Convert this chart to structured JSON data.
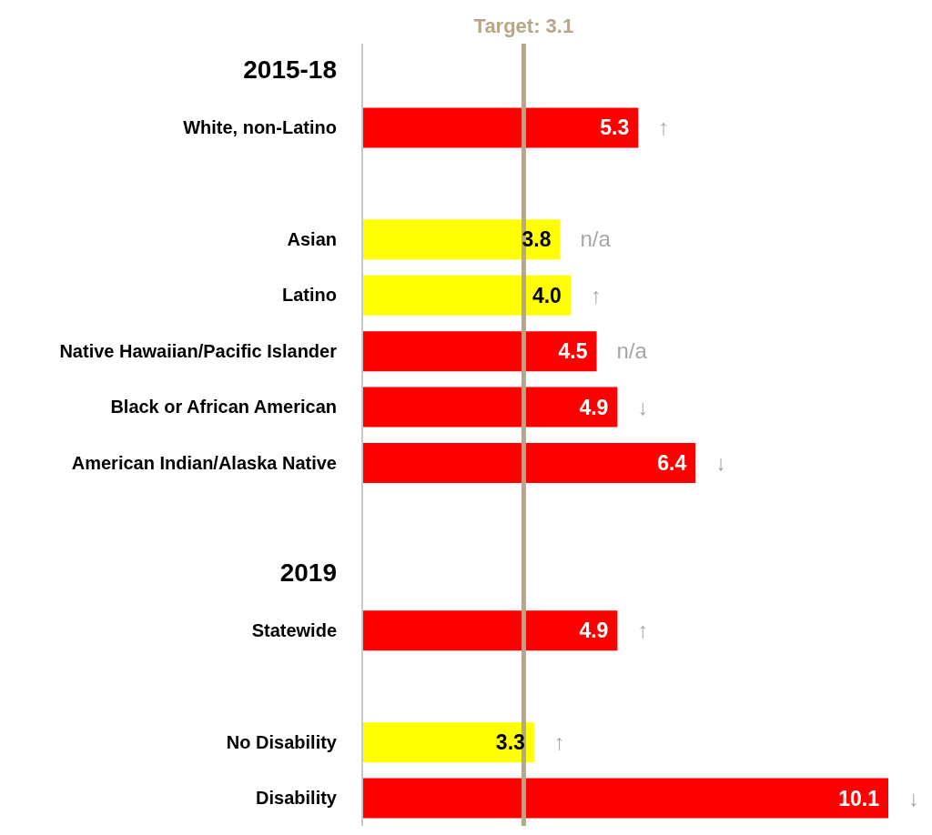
{
  "chart_data": {
    "type": "bar",
    "orientation": "horizontal",
    "categories": [
      "2015-18",
      "White, non-Latino",
      null,
      "Asian",
      "Latino",
      "Native Hawaiian/Pacific Islander",
      "Black or African American",
      "American Indian/Alaska Native",
      null,
      "2019",
      "Statewide",
      null,
      "No Disability",
      "Disability"
    ],
    "values": [
      null,
      5.3,
      null,
      3.8,
      4.0,
      4.5,
      4.9,
      6.4,
      null,
      null,
      4.9,
      null,
      3.3,
      10.1
    ],
    "colors": [
      "#ff0000",
      "#ff0000",
      "#ff0000",
      "#ffff00",
      "#ffff00",
      "#ff0000",
      "#ff0000",
      "#ff0000",
      "#ff0000",
      "#ff0000",
      "#ff0000",
      "#ff0000",
      "#ffff00",
      "#ff0000"
    ],
    "value_labels": [
      null,
      "5.3",
      null,
      "3.8",
      "4.0",
      "4.5",
      "4.9",
      "6.4",
      null,
      null,
      "4.9",
      null,
      "3.3",
      "10.1"
    ],
    "ref_lines": [
      {
        "axis": "x",
        "value": 3.1,
        "label": "Target: 3.1",
        "color": "#b5a886"
      }
    ],
    "annotations": [
      {
        "text": "↑",
        "x": 5.3,
        "y": "White, non-Latino"
      },
      {
        "text": "n/a",
        "x": 3.8,
        "y": "Asian"
      },
      {
        "text": "↑",
        "x": 4.0,
        "y": "Latino"
      },
      {
        "text": "n/a",
        "x": 4.5,
        "y": "Native Hawaiian/Pacific Islander"
      },
      {
        "text": "↓",
        "x": 4.9,
        "y": "Black or African American"
      },
      {
        "text": "↓",
        "x": 6.4,
        "y": "American Indian/Alaska Native"
      },
      {
        "text": "↑",
        "x": 4.9,
        "y": "Statewide"
      },
      {
        "text": "↑",
        "x": 3.3,
        "y": "No Disability"
      },
      {
        "text": "↓",
        "x": 10.1,
        "y": "Disability"
      }
    ]
  }
}
